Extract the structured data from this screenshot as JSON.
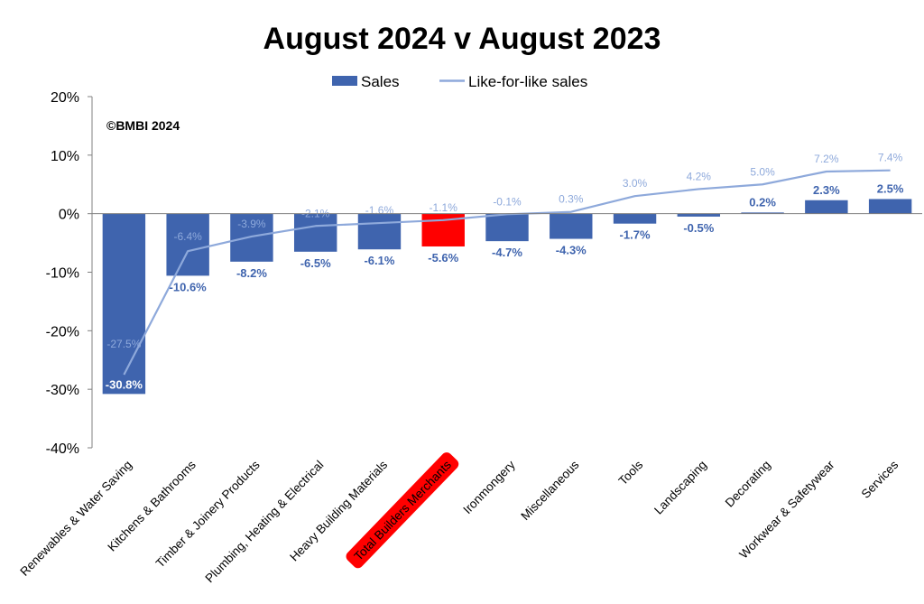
{
  "chart_data": {
    "type": "bar",
    "title": "August 2024 v August 2023",
    "copyright": "©BMBI 2024",
    "legend_position": "top-center",
    "ylim": [
      -40,
      20
    ],
    "yticks": [
      20,
      10,
      0,
      -10,
      -20,
      -30,
      -40
    ],
    "ytick_labels": [
      "20%",
      "10%",
      "0%",
      "-10%",
      "-20%",
      "-30%",
      "-40%"
    ],
    "grid": false,
    "categories": [
      "Renewables & Water Saving",
      "Kitchens & Bathrooms",
      "Timber & Joinery Products",
      "Plumbing, Heating & Electrical",
      "Heavy Building Materials",
      "Total Builders Merchants",
      "Ironmongery",
      "Miscellaneous",
      "Tools",
      "Landscaping",
      "Decorating",
      "Workwear & Safetywear",
      "Services"
    ],
    "highlight_category": "Total Builders Merchants",
    "series": [
      {
        "name": "Sales",
        "kind": "bar",
        "color": "#3f64ae",
        "highlight_color": "#ff0000",
        "values": [
          -30.8,
          -10.6,
          -8.2,
          -6.5,
          -6.1,
          -5.6,
          -4.7,
          -4.3,
          -1.7,
          -0.5,
          0.2,
          2.3,
          2.5
        ],
        "labels": [
          "-30.8%",
          "-10.6%",
          "-8.2%",
          "-6.5%",
          "-6.1%",
          "-5.6%",
          "-4.7%",
          "-4.3%",
          "-1.7%",
          "-0.5%",
          "0.2%",
          "2.3%",
          "2.5%"
        ]
      },
      {
        "name": "Like-for-like sales",
        "kind": "line",
        "color": "#8ea9db",
        "values": [
          -27.5,
          -6.4,
          -3.9,
          -2.1,
          -1.6,
          -1.1,
          -0.1,
          0.3,
          3.0,
          4.2,
          5.0,
          7.2,
          7.4
        ],
        "labels": [
          "-27.5%",
          "-6.4%",
          "-3.9%",
          "-2.1%",
          "-1.6%",
          "-1.1%",
          "-0.1%",
          "0.3%",
          "3.0%",
          "4.2%",
          "5.0%",
          "7.2%",
          "7.4%"
        ]
      }
    ]
  }
}
